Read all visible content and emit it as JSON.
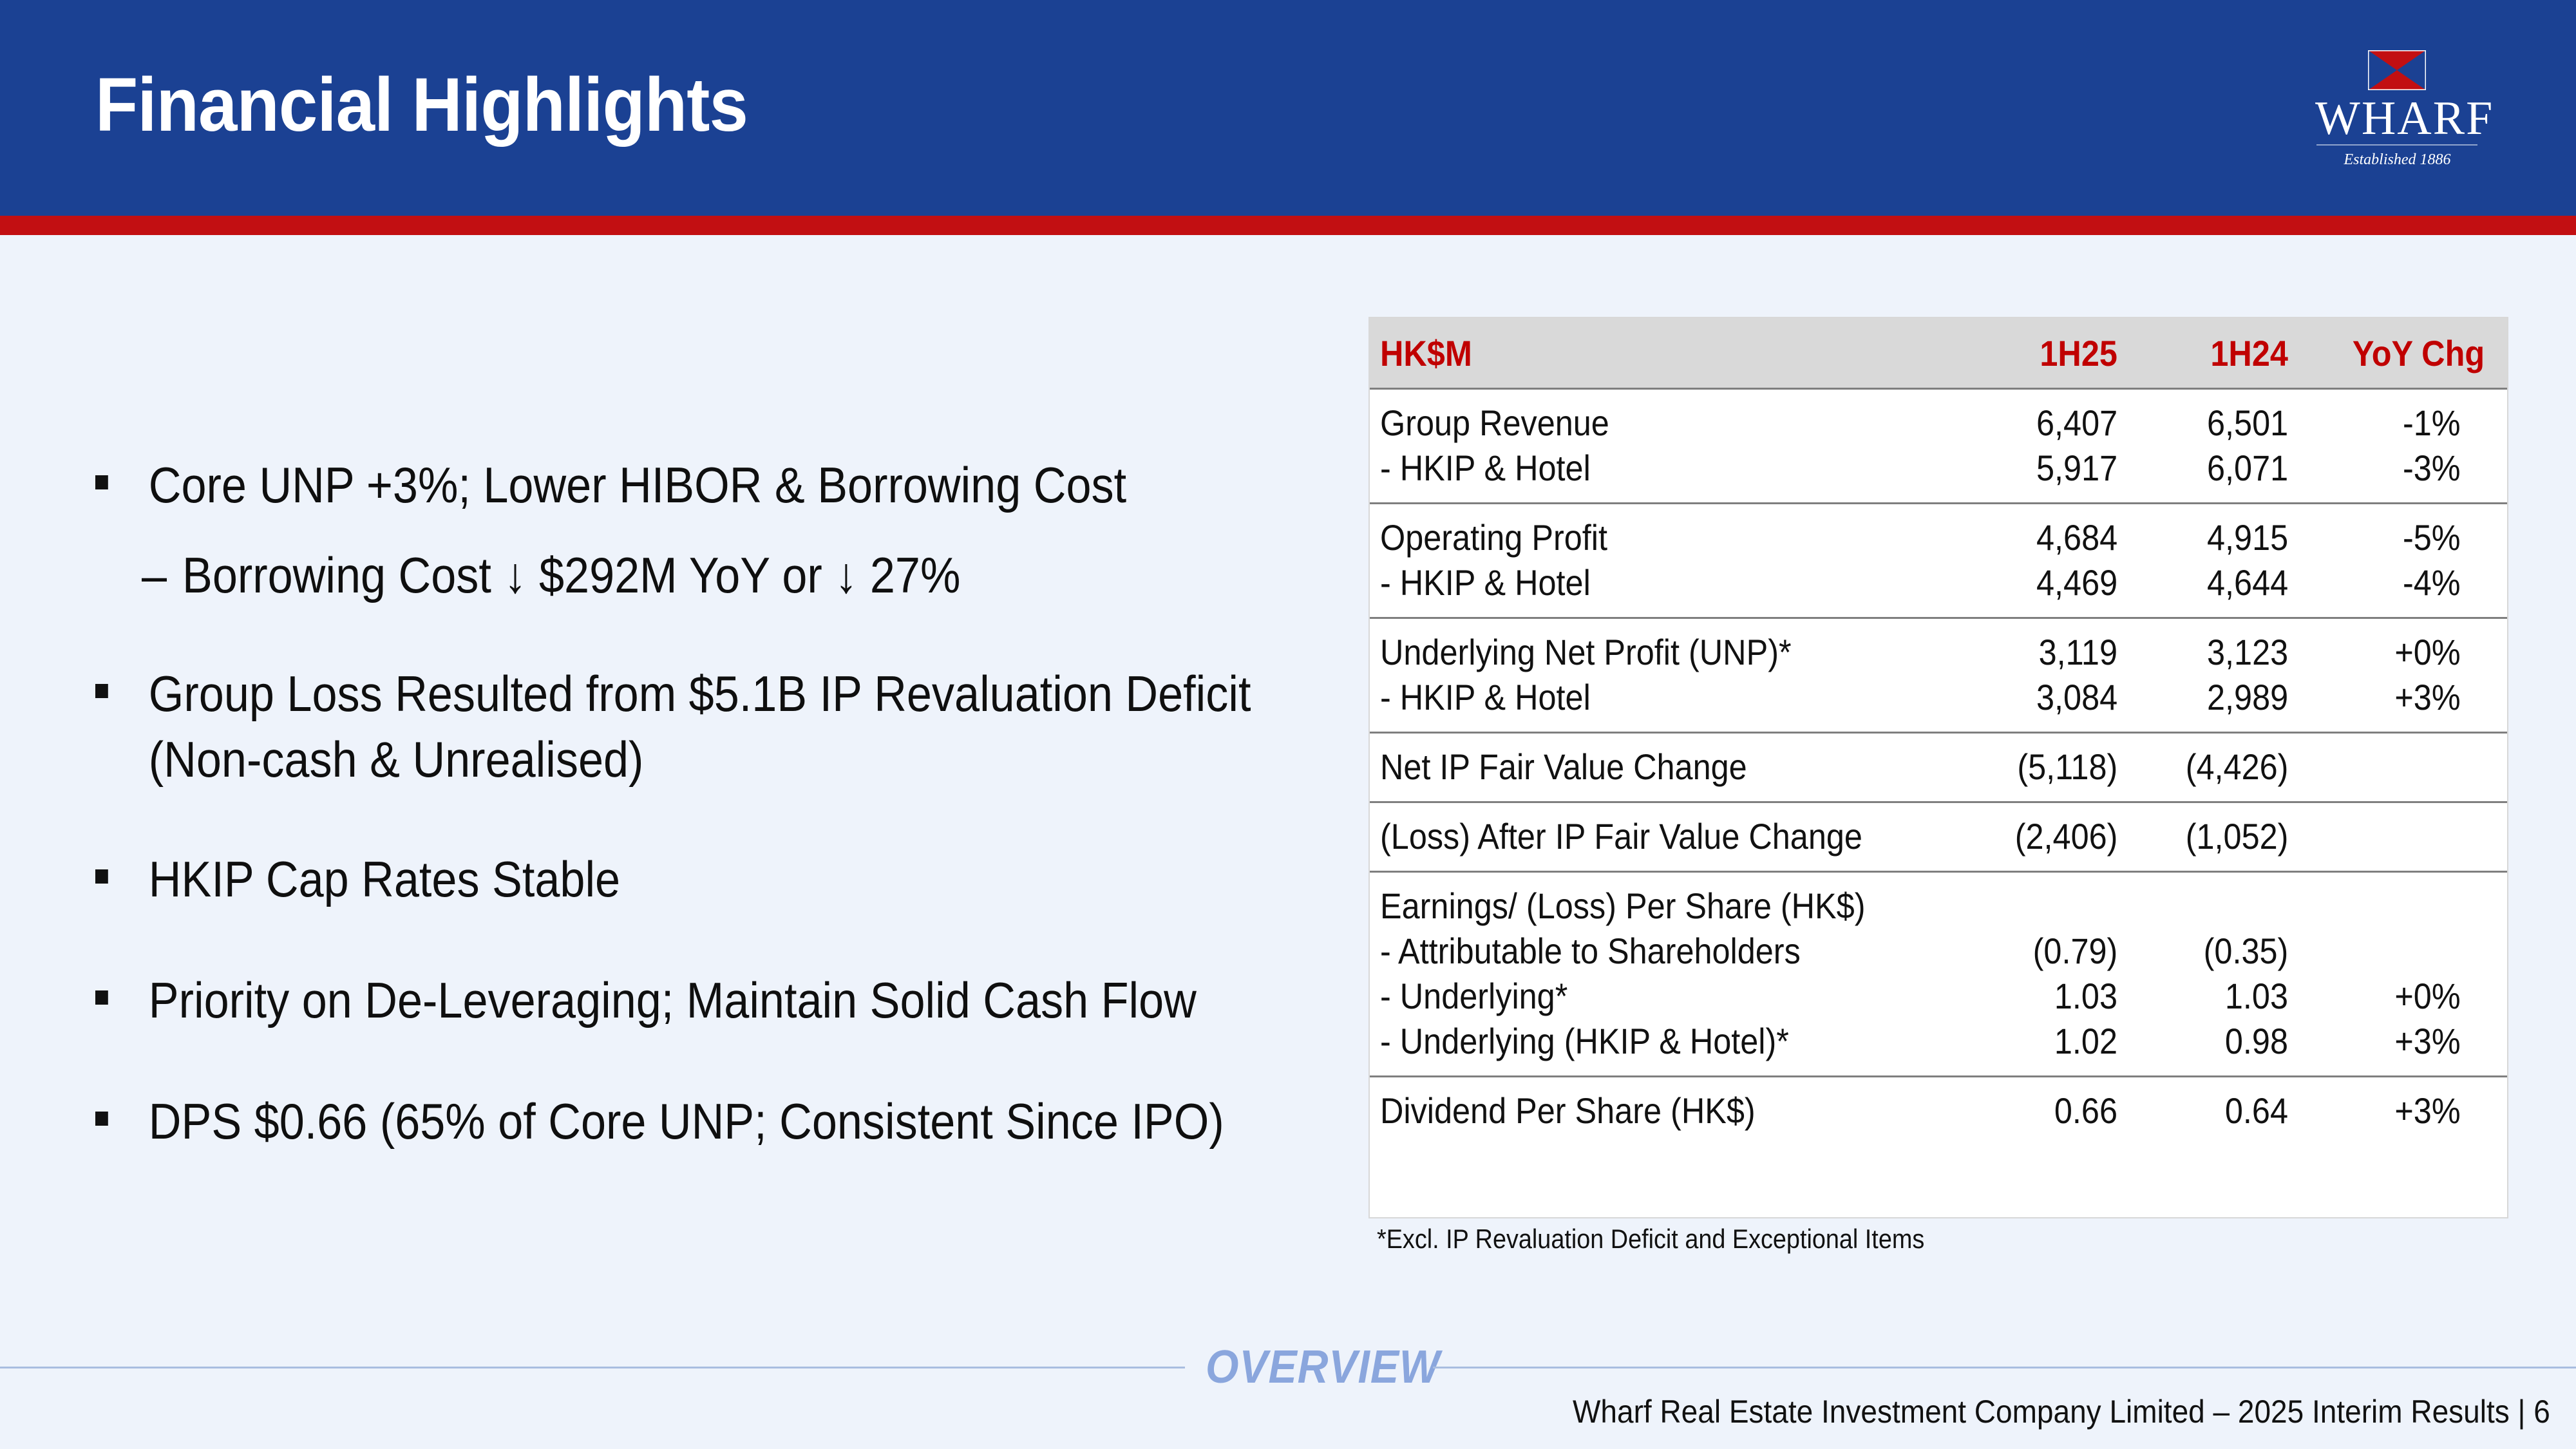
{
  "header": {
    "title": "Financial Highlights",
    "logo": {
      "name": "WHARF",
      "tagline": "Established 1886"
    },
    "colors": {
      "band": "#1b4193",
      "stripe": "#c20f12"
    }
  },
  "bullets": [
    {
      "text": "Core UNP +3%; Lower HIBOR & Borrowing Cost",
      "sub": "Borrowing Cost ↓ $292M YoY or ↓ 27%"
    },
    {
      "text": "Group Loss Resulted from $5.1B IP Revaluation Deficit",
      "text2": "(Non-cash & Unrealised)"
    },
    {
      "text": "HKIP Cap Rates Stable"
    },
    {
      "text": "Priority on De-Leveraging; Maintain Solid Cash Flow"
    },
    {
      "text": "DPS $0.66 (65% of Core UNP; Consistent Since IPO)"
    }
  ],
  "table": {
    "headers": [
      "HK$M",
      "1H25",
      "1H24",
      "YoY Chg"
    ],
    "groups": [
      {
        "rows": [
          {
            "label": "Group Revenue",
            "h25": "6,407",
            "h24": "6,501",
            "chg": "-1%"
          },
          {
            "label": "- HKIP & Hotel",
            "h25": "5,917",
            "h24": "6,071",
            "chg": "-3%"
          }
        ]
      },
      {
        "rows": [
          {
            "label": "Operating Profit",
            "h25": "4,684",
            "h24": "4,915",
            "chg": "-5%"
          },
          {
            "label": "- HKIP & Hotel",
            "h25": "4,469",
            "h24": "4,644",
            "chg": "-4%"
          }
        ]
      },
      {
        "rows": [
          {
            "label": "Underlying Net Profit (UNP)*",
            "h25": "3,119",
            "h24": "3,123",
            "chg": "+0%"
          },
          {
            "label": "- HKIP & Hotel",
            "h25": "3,084",
            "h24": "2,989",
            "chg": "+3%"
          }
        ]
      },
      {
        "rows": [
          {
            "label": "Net IP Fair Value Change",
            "h25": "(5,118)",
            "h24": "(4,426)",
            "chg": ""
          }
        ]
      },
      {
        "rows": [
          {
            "label": "(Loss) After IP Fair Value Change",
            "h25": "(2,406)",
            "h24": "(1,052)",
            "chg": ""
          }
        ]
      },
      {
        "rows": [
          {
            "label": "Earnings/ (Loss) Per Share (HK$)",
            "h25": "",
            "h24": "",
            "chg": ""
          },
          {
            "label": "- Attributable to Shareholders",
            "h25": "(0.79)",
            "h24": "(0.35)",
            "chg": ""
          },
          {
            "label": "- Underlying*",
            "h25": "1.03",
            "h24": "1.03",
            "chg": "+0%"
          },
          {
            "label": "- Underlying (HKIP & Hotel)*",
            "h25": "1.02",
            "h24": "0.98",
            "chg": "+3%"
          }
        ]
      },
      {
        "rows": [
          {
            "label": "Dividend Per Share (HK$)",
            "h25": "0.66",
            "h24": "0.64",
            "chg": "+3%"
          }
        ]
      }
    ],
    "footnote": "*Excl. IP Revaluation Deficit and Exceptional Items"
  },
  "footer": {
    "section": "OVERVIEW",
    "text": "Wharf Real Estate Investment Company Limited – 2025 Interim Results   |   6"
  }
}
